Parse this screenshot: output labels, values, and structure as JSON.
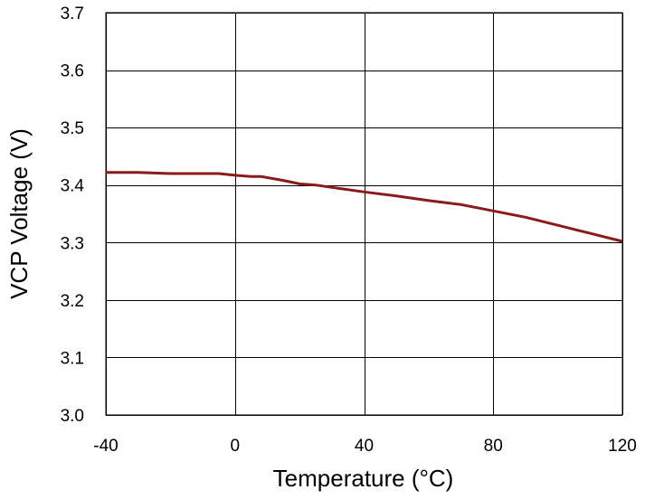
{
  "chart_data": {
    "type": "line",
    "title": "",
    "xlabel": "Temperature (°C)",
    "ylabel": "VCP Voltage (V)",
    "xlim": [
      -40,
      120
    ],
    "ylim": [
      3.0,
      3.7
    ],
    "x_ticks": [
      -40,
      0,
      40,
      80,
      120
    ],
    "x_tick_labels": [
      "-40",
      "0",
      "40",
      "80",
      "120"
    ],
    "y_ticks": [
      3.0,
      3.1,
      3.2,
      3.3,
      3.4,
      3.5,
      3.6,
      3.7
    ],
    "y_tick_labels": [
      "3.0",
      "3.1",
      "3.2",
      "3.3",
      "3.4",
      "3.5",
      "3.6",
      "3.7"
    ],
    "grid": true,
    "legend": "none",
    "series": [
      {
        "color": "#8b1a1a",
        "x": [
          -40,
          -30,
          -20,
          -10,
          -5,
          0,
          5,
          8,
          15,
          20,
          25,
          30,
          40,
          50,
          60,
          70,
          80,
          90,
          100,
          110,
          120
        ],
        "y": [
          3.422,
          3.422,
          3.42,
          3.42,
          3.42,
          3.417,
          3.415,
          3.415,
          3.408,
          3.402,
          3.4,
          3.396,
          3.388,
          3.381,
          3.373,
          3.366,
          3.355,
          3.344,
          3.33,
          3.316,
          3.302
        ]
      }
    ]
  }
}
